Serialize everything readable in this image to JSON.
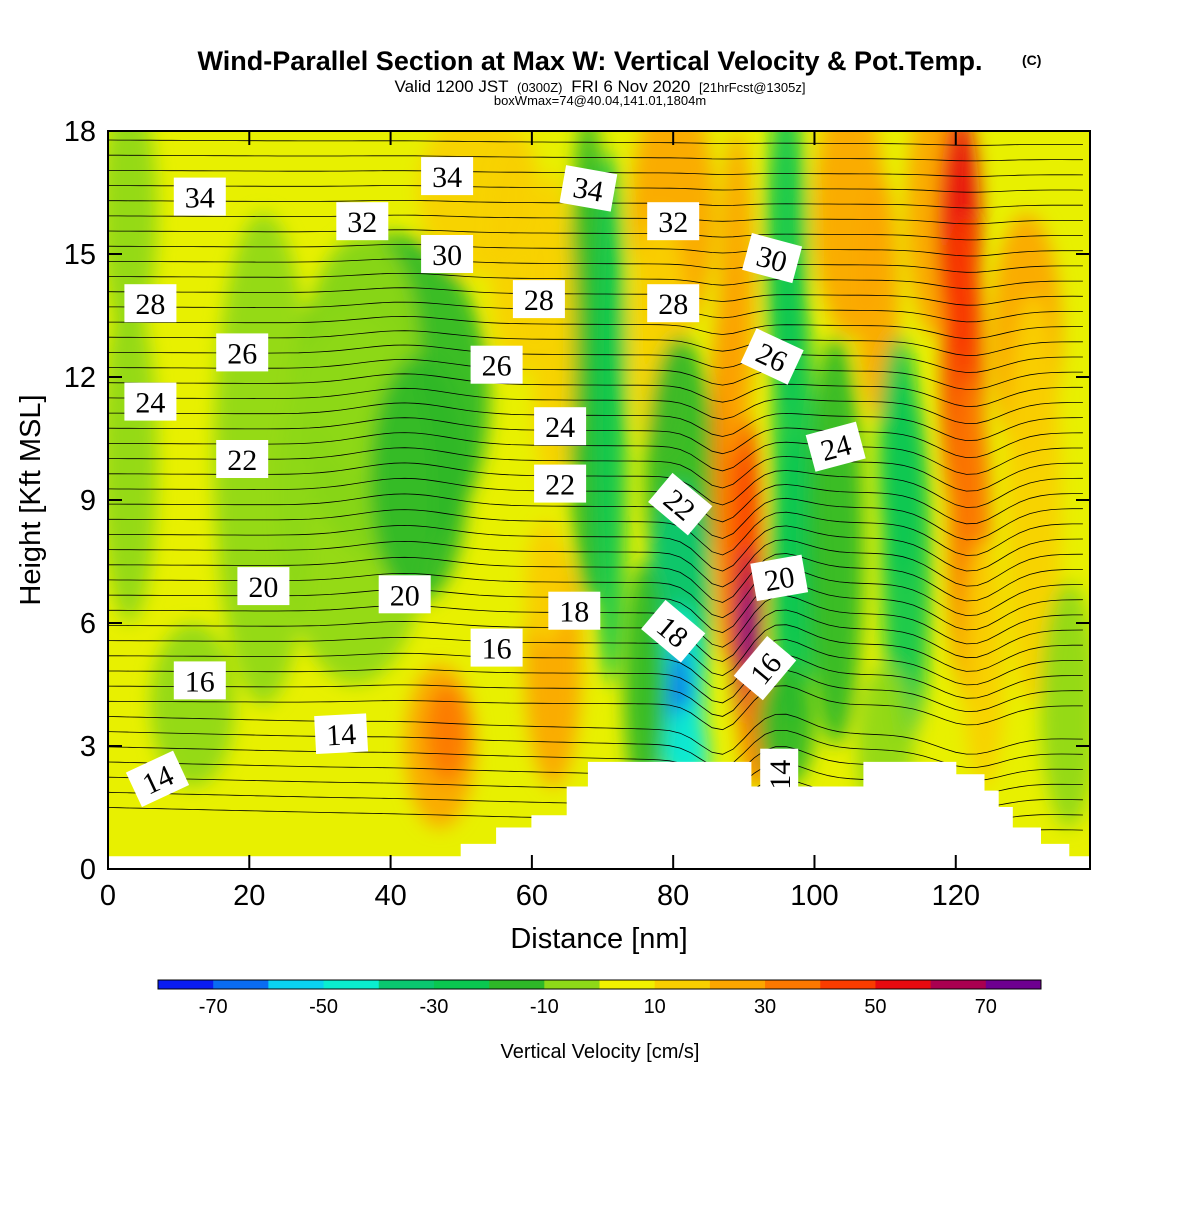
{
  "chart_data": {
    "type": "heatmap",
    "title": "Wind-Parallel Section at Max W: Vertical Velocity & Pot.Temp.",
    "title_mark": "(C)",
    "subtitle": {
      "prefix": "Valid 1200 JST",
      "utc": "(0300Z)",
      "date": "FRI 6 Nov 2020",
      "forecast": "[21hrFcst@1305z]"
    },
    "box_info": "boxWmax=74@40.04,141.01,1804m",
    "xlabel": "Distance [nm]",
    "ylabel": "Height [Kft MSL]",
    "xlim": [
      0,
      139
    ],
    "ylim": [
      0,
      18
    ],
    "x_ticks": [
      0,
      20,
      40,
      60,
      80,
      100,
      120
    ],
    "y_ticks": [
      0,
      3,
      6,
      9,
      12,
      15,
      18
    ],
    "colorbar": {
      "label": "Vertical Velocity [cm/s]",
      "bounds": [
        -80,
        -70,
        -60,
        -50,
        -40,
        -30,
        -20,
        -10,
        0,
        10,
        20,
        30,
        40,
        50,
        60,
        70,
        80
      ],
      "tick_labels": [
        -70,
        -50,
        -30,
        -10,
        10,
        30,
        50,
        70
      ],
      "colors": [
        "#0a1cf0",
        "#0a6cf0",
        "#0ad2f0",
        "#0aeed0",
        "#0ac870",
        "#0ac850",
        "#2eb828",
        "#8ed818",
        "#f0f000",
        "#f8d000",
        "#fca600",
        "#fc7800",
        "#fa3c00",
        "#e80a10",
        "#aa0050",
        "#6e0090"
      ]
    },
    "vertical_velocity_field": {
      "background_range": [
        0,
        10
      ],
      "features": [
        {
          "x": 90.5,
          "z": 6.0,
          "w": 74
        },
        {
          "x": 91,
          "z": 4.5,
          "w": 55
        },
        {
          "x": 120,
          "z": 15,
          "w": 50
        },
        {
          "x": 122,
          "z": 12,
          "w": 40
        },
        {
          "x": 81,
          "z": 4.2,
          "w": -60
        },
        {
          "x": 81,
          "z": 2.5,
          "w": -45
        },
        {
          "x": 82,
          "z": 7,
          "w": -35
        },
        {
          "x": 97,
          "z": 10,
          "w": -30
        },
        {
          "x": 113,
          "z": 7,
          "w": -30
        },
        {
          "x": 98,
          "z": 16,
          "w": -20
        },
        {
          "x": 69,
          "z": 14,
          "w": -15
        },
        {
          "x": 40,
          "z": 10,
          "w": -15
        },
        {
          "x": 62,
          "z": 5,
          "w": 20
        },
        {
          "x": 48,
          "z": 3,
          "w": 30
        },
        {
          "x": 78,
          "z": 14,
          "w": 20
        }
      ]
    },
    "terrain_profile": {
      "x": [
        0,
        48,
        50,
        55,
        60,
        65,
        68,
        75,
        84,
        87,
        91,
        92,
        107,
        108,
        120,
        124,
        126,
        128,
        132,
        136,
        139
      ],
      "z": [
        0.3,
        0.3,
        0.6,
        1.0,
        1.3,
        2.0,
        2.6,
        2.6,
        2.6,
        2.6,
        2.0,
        2.0,
        2.6,
        2.6,
        2.3,
        1.9,
        1.5,
        1.0,
        0.6,
        0.3,
        0.3
      ]
    },
    "theta_contour_labels": [
      "14",
      "14",
      "14",
      "16",
      "16",
      "16",
      "18",
      "18",
      "20",
      "20",
      "20",
      "22",
      "22",
      "22",
      "24",
      "24",
      "24",
      "26",
      "26",
      "26",
      "28",
      "28",
      "28",
      "30",
      "30",
      "32",
      "32",
      "34",
      "34",
      "34"
    ]
  }
}
